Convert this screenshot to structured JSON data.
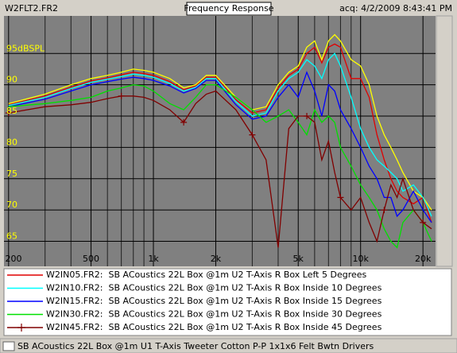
{
  "chart_data": {
    "type": "line",
    "file_label": "W2FLT2.FR2",
    "title": "Frequency Response",
    "timestamp": "acq: 4/2/2009 8:43:41 PM",
    "status": "SB ACoustics 22L Box @1m U1 T-Axis Tweeter Cotton P-P 1x1x6 Felt Bwtn Drivers",
    "log_x": true,
    "grid": true,
    "xlim": [
      190,
      23000
    ],
    "ylim": [
      61,
      101
    ],
    "xticks": [
      {
        "value": 200,
        "label": "200"
      },
      {
        "value": 500,
        "label": "500"
      },
      {
        "value": 1000,
        "label": "1k"
      },
      {
        "value": 2000,
        "label": "2k"
      },
      {
        "value": 5000,
        "label": "5k"
      },
      {
        "value": 10000,
        "label": "10k"
      },
      {
        "value": 20000,
        "label": "20k"
      }
    ],
    "xminorticks": [
      300,
      400,
      600,
      700,
      800,
      900,
      3000,
      4000,
      6000,
      7000,
      8000,
      9000
    ],
    "yticks": [
      {
        "value": 95,
        "label": "95dBSPL"
      },
      90,
      85,
      80,
      75,
      70,
      65
    ],
    "x": [
      200,
      300,
      400,
      500,
      600,
      700,
      800,
      900,
      1000,
      1200,
      1400,
      1600,
      1800,
      2000,
      2500,
      3000,
      3500,
      4000,
      4500,
      5000,
      5500,
      6000,
      6500,
      7000,
      7500,
      8000,
      9000,
      10000,
      11000,
      12000,
      13000,
      14000,
      15000,
      16000,
      18000,
      20000,
      22000
    ],
    "series": [
      {
        "color": "#ffff00",
        "values": [
          87,
          88.5,
          90,
          91,
          91.5,
          92,
          92.5,
          92.3,
          92,
          91,
          89.5,
          90,
          91.5,
          91.5,
          88,
          86,
          86.5,
          90,
          92,
          93,
          96,
          97,
          94,
          97,
          98,
          97,
          94,
          93,
          90,
          85,
          82,
          80,
          78,
          76,
          73,
          72,
          70
        ]
      },
      {
        "name": "W2IN05.FR2:  SB ACoustics 22L Box @1m U2 T-Axis R Box Left 5 Degrees",
        "color": "#e00000",
        "values": [
          86.8,
          88.2,
          89.6,
          90.6,
          91.1,
          91.6,
          92,
          91.8,
          91.5,
          90.5,
          89.2,
          89.8,
          91.2,
          91.2,
          87.6,
          85.5,
          86,
          89.5,
          91.5,
          92.5,
          95,
          96,
          93.5,
          96,
          96.5,
          96,
          91,
          91,
          88,
          82,
          78,
          75,
          73,
          72,
          71,
          72,
          68
        ]
      },
      {
        "name": "W2IN10.FR2:  SB ACoustics 22L Box @1m U2 T-Axis R Box Inside 10 Degrees",
        "color": "#00ffff",
        "values": [
          86.7,
          88,
          89.4,
          90.4,
          90.9,
          91.3,
          91.7,
          91.5,
          91.2,
          90.2,
          89,
          89.6,
          91,
          91,
          87.3,
          85,
          85.5,
          89,
          91,
          92,
          94,
          93,
          91,
          94,
          95,
          93,
          88,
          83,
          80,
          78,
          77,
          76,
          75,
          73,
          74,
          72,
          69
        ]
      },
      {
        "name": "W2IN15.FR2:  SB ACoustics 22L Box @1m U2 T-Axis R Box Inside 15 Degrees",
        "color": "#0000ff",
        "values": [
          86.5,
          87.7,
          89,
          90,
          90.5,
          90.9,
          91.2,
          91,
          90.7,
          89.8,
          88.7,
          89.4,
          90.7,
          90.7,
          86.8,
          84.5,
          85,
          88,
          90,
          88,
          92,
          89,
          85,
          90,
          89,
          86,
          83,
          80,
          77,
          75,
          72,
          72,
          69,
          70,
          73,
          70,
          68
        ]
      },
      {
        "name": "W2IN30.FR2:  SB ACoustics 22L Box @1m U2 T-Axis R Box Inside 30 Degrees",
        "color": "#00e000",
        "values": [
          86.5,
          87,
          87.5,
          88,
          89,
          89.5,
          90,
          89.8,
          89,
          87,
          86,
          88,
          90,
          90,
          88,
          86,
          84,
          85,
          86,
          84,
          82,
          86,
          84,
          85,
          84,
          80,
          77,
          74,
          72,
          70,
          67,
          65,
          64,
          68,
          70,
          68,
          65
        ]
      },
      {
        "name": "W2IN45.FR2:  SB ACoustics 22L Box @1m U2 T-Axis R Box Inside 45 Degrees",
        "color": "#800000",
        "marker": "+",
        "values": [
          85.5,
          86.5,
          86.8,
          87.2,
          87.8,
          88.2,
          88.2,
          88,
          87.5,
          86,
          84,
          87,
          88.5,
          89,
          86,
          82,
          78,
          64,
          83,
          85,
          85,
          84,
          78,
          81,
          76,
          72,
          70,
          72,
          68,
          65,
          70,
          74,
          72,
          75,
          70,
          68,
          67
        ]
      }
    ]
  }
}
